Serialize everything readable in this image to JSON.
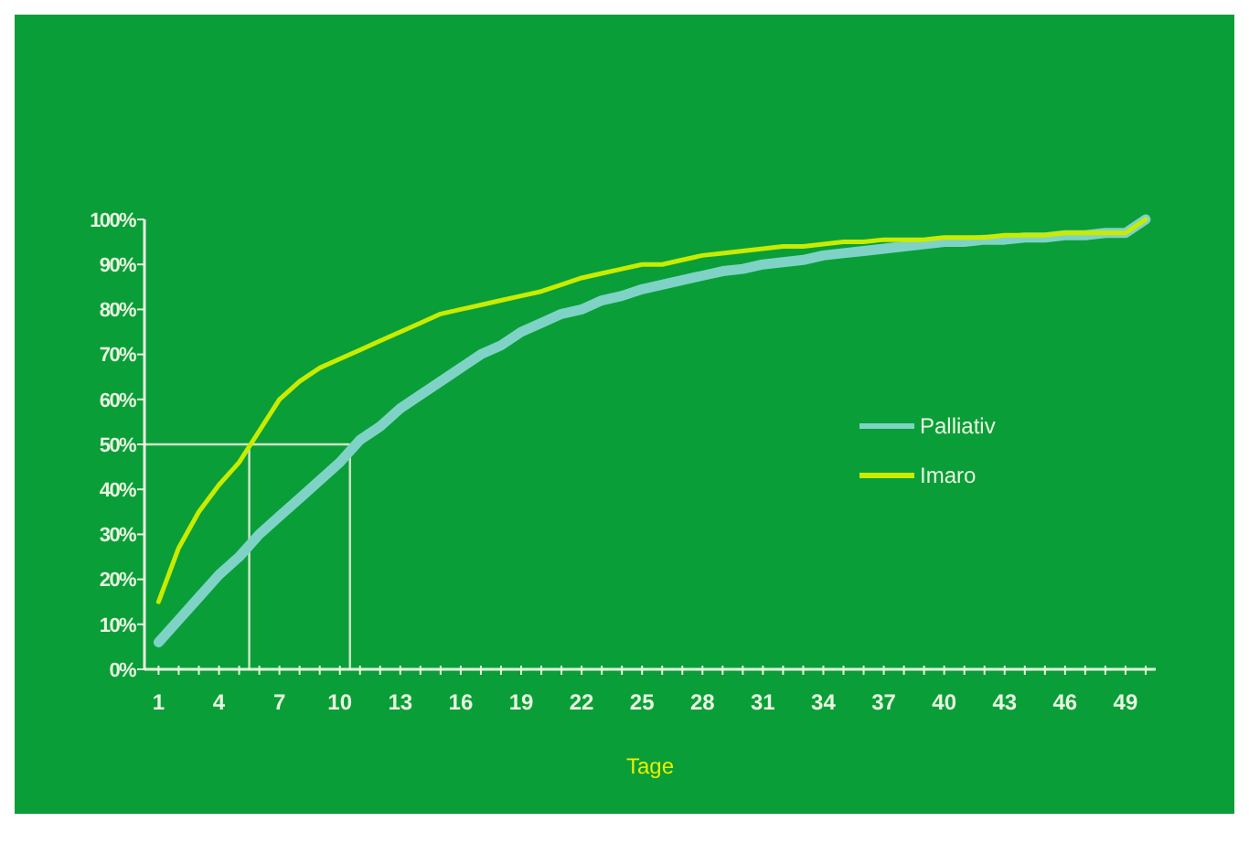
{
  "chart_data": {
    "type": "line",
    "xlabel": "Tage",
    "x": [
      1,
      2,
      3,
      4,
      5,
      6,
      7,
      8,
      9,
      10,
      11,
      12,
      13,
      14,
      15,
      16,
      17,
      18,
      19,
      20,
      21,
      22,
      23,
      24,
      25,
      26,
      27,
      28,
      29,
      30,
      31,
      32,
      33,
      34,
      35,
      36,
      37,
      38,
      39,
      40,
      41,
      42,
      43,
      44,
      45,
      46,
      47,
      48,
      49,
      50
    ],
    "series": [
      {
        "name": "Palliativ",
        "color": "#7fd3c6",
        "values": [
          6,
          11,
          16,
          21,
          25,
          30,
          34,
          38,
          42,
          46,
          51,
          54,
          58,
          61,
          64,
          67,
          70,
          72,
          75,
          77,
          79,
          80,
          82,
          83,
          84.5,
          85.5,
          86.5,
          87.5,
          88.5,
          89,
          90,
          90.5,
          91,
          92,
          92.5,
          93,
          93.5,
          94,
          94.5,
          95,
          95,
          95.5,
          95.5,
          96,
          96,
          96.5,
          96.5,
          97,
          97,
          100
        ]
      },
      {
        "name": "Imaro",
        "color": "#c8ec00",
        "values": [
          15,
          27,
          35,
          41,
          46,
          53,
          60,
          64,
          67,
          69,
          71,
          73,
          75,
          77,
          79,
          80,
          81,
          82,
          83,
          84,
          85.5,
          87,
          88,
          89,
          90,
          90,
          91,
          92,
          92.5,
          93,
          93.5,
          94,
          94,
          94.5,
          95,
          95,
          95.5,
          95.5,
          95.5,
          96,
          96,
          96,
          96.5,
          96.5,
          96.5,
          97,
          97,
          97,
          97,
          100
        ]
      }
    ],
    "xlim": [
      0.3,
      50.5
    ],
    "xticks": [
      1,
      {
        "value": 2,
        "label": null
      },
      {
        "value": 3,
        "label": null
      },
      4,
      {
        "value": 5,
        "label": null
      },
      {
        "value": 6,
        "label": null
      },
      7,
      {
        "value": 8,
        "label": null
      },
      {
        "value": 9,
        "label": null
      },
      10,
      {
        "value": 11,
        "label": null
      },
      {
        "value": 12,
        "label": null
      },
      13,
      {
        "value": 14,
        "label": null
      },
      {
        "value": 15,
        "label": null
      },
      16,
      {
        "value": 17,
        "label": null
      },
      {
        "value": 18,
        "label": null
      },
      19,
      {
        "value": 20,
        "label": null
      },
      {
        "value": 21,
        "label": null
      },
      22,
      {
        "value": 23,
        "label": null
      },
      {
        "value": 24,
        "label": null
      },
      25,
      {
        "value": 26,
        "label": null
      },
      {
        "value": 27,
        "label": null
      },
      28,
      {
        "value": 29,
        "label": null
      },
      {
        "value": 30,
        "label": null
      },
      31,
      {
        "value": 32,
        "label": null
      },
      {
        "value": 33,
        "label": null
      },
      34,
      {
        "value": 35,
        "label": null
      },
      {
        "value": 36,
        "label": null
      },
      37,
      {
        "value": 38,
        "label": null
      },
      {
        "value": 39,
        "label": null
      },
      40,
      {
        "value": 41,
        "label": null
      },
      {
        "value": 42,
        "label": null
      },
      43,
      {
        "value": 44,
        "label": null
      },
      {
        "value": 45,
        "label": null
      },
      46,
      {
        "value": 47,
        "label": null
      },
      {
        "value": 48,
        "label": null
      },
      49,
      {
        "value": 50,
        "label": null
      }
    ],
    "ylim": [
      0,
      100
    ],
    "yticks": [
      {
        "value": 0,
        "label": "0%"
      },
      {
        "value": 10,
        "label": "10%"
      },
      {
        "value": 20,
        "label": "20%"
      },
      {
        "value": 30,
        "label": "30%"
      },
      {
        "value": 40,
        "label": "40%"
      },
      {
        "value": 50,
        "label": "50%"
      },
      {
        "value": 60,
        "label": "60%"
      },
      {
        "value": 70,
        "label": "70%"
      },
      {
        "value": 80,
        "label": "80%"
      },
      {
        "value": 90,
        "label": "90%"
      },
      {
        "value": 100,
        "label": "100%"
      }
    ],
    "ref_lines": [
      {
        "axis": "y",
        "value": 50,
        "color": "#cfe8c8"
      },
      {
        "axis": "x",
        "value": 5.5,
        "color": "#cfe8c8"
      },
      {
        "axis": "x",
        "value": 10.5,
        "color": "#cfe8c8"
      }
    ],
    "grid": false,
    "legend": "right",
    "marker": "none",
    "line_style": "solid"
  }
}
